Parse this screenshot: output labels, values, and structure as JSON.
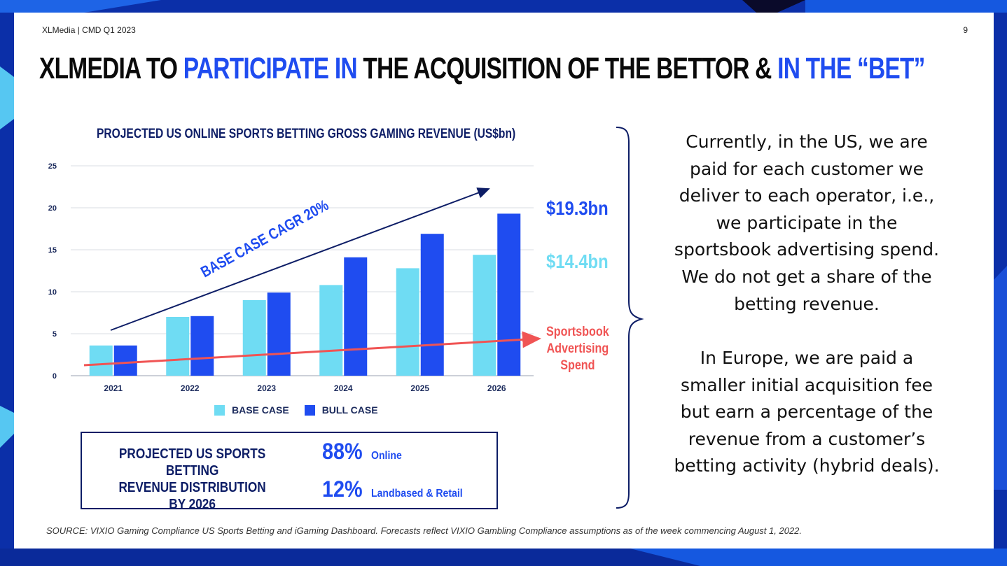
{
  "header": {
    "company_doc": "XLMedia | CMD Q1 2023",
    "page_number": "9",
    "headline_parts": [
      {
        "text": "XLMEDIA TO ",
        "highlight": false
      },
      {
        "text": "PARTICIPATE IN",
        "highlight": true
      },
      {
        "text": " THE ACQUISITION OF THE BETTOR & ",
        "highlight": false
      },
      {
        "text": "IN THE “BET”",
        "highlight": true
      }
    ]
  },
  "colors": {
    "base_case": "#6fdcf3",
    "bull_case": "#1f4cf0",
    "navy": "#0d1d66",
    "sportsbook_line": "#f05454",
    "background": "#0b2fa8"
  },
  "chart_data": {
    "type": "bar",
    "title": "PROJECTED US ONLINE SPORTS BETTING GROSS GAMING REVENUE (US$bn)",
    "categories": [
      "2021",
      "2022",
      "2023",
      "2024",
      "2025",
      "2026"
    ],
    "series": [
      {
        "name": "BASE CASE",
        "values": [
          3.6,
          7.0,
          9.0,
          10.8,
          12.8,
          14.4
        ]
      },
      {
        "name": "BULL CASE",
        "values": [
          3.6,
          7.1,
          9.9,
          14.1,
          16.9,
          19.3
        ]
      }
    ],
    "yticks": [
      0,
      5,
      10,
      15,
      20,
      25
    ],
    "ylim": [
      0,
      25
    ],
    "grid": true,
    "legend": "bottom",
    "annotations": {
      "cagr_label": "BASE CASE CAGR 20%",
      "bull_value": "$19.3bn",
      "base_value": "$14.4bn",
      "sportsbook_label_lines": [
        "Sportsbook",
        "Advertising",
        "Spend"
      ]
    }
  },
  "distribution": {
    "title_lines": [
      "PROJECTED US SPORTS BETTING",
      "REVENUE DISTRIBUTION",
      "BY 2026"
    ],
    "rows": [
      {
        "pct": "88%",
        "label": "Online"
      },
      {
        "pct": "12%",
        "label": "Landbased & Retail"
      }
    ]
  },
  "body": {
    "paragraph1_lines": [
      "Currently, in the US, we are",
      "paid for each customer we",
      "deliver to each operator, i.e.,",
      "we participate in the",
      "sportsbook advertising spend.",
      "We do not get a share of the",
      "betting revenue."
    ],
    "paragraph2_lines": [
      "In Europe, we are paid a",
      "smaller initial acquisition fee",
      "but earn a percentage of the",
      "revenue from a customer’s",
      "betting activity (hybrid deals)."
    ]
  },
  "footer": {
    "source": "SOURCE: VIXIO  Gaming Compliance US Sports Betting and iGaming Dashboard. Forecasts reflect VIXIO Gambling Compliance assumptions as of the week commencing August 1, 2022."
  }
}
